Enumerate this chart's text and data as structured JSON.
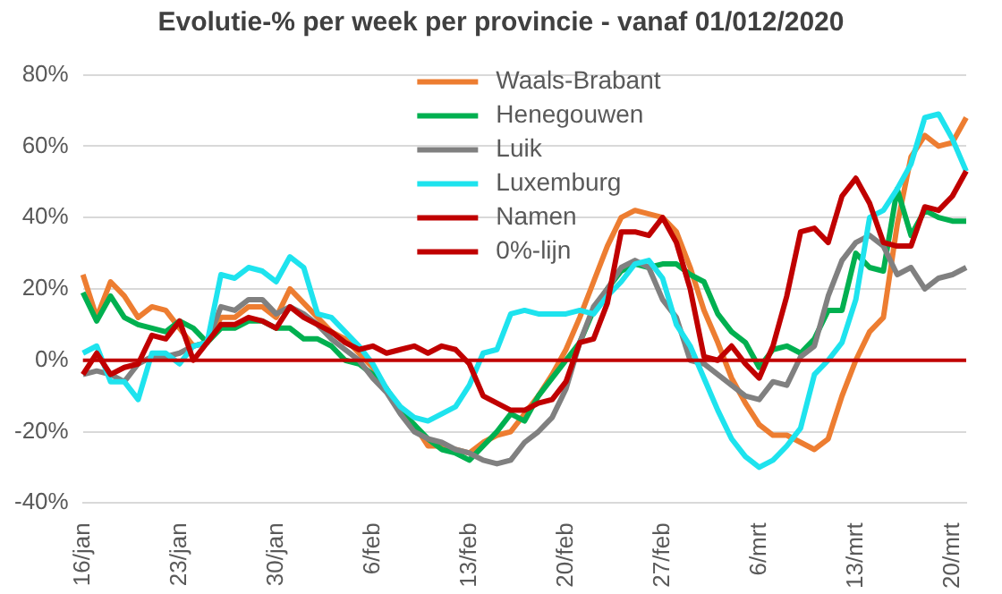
{
  "chart_data": {
    "type": "line",
    "title": "Evolutie-% per week per provincie - vanaf 01/012/2020",
    "categories": [
      "16/jan",
      null,
      null,
      null,
      null,
      null,
      null,
      "23/jan",
      null,
      null,
      null,
      null,
      null,
      null,
      "30/jan",
      null,
      null,
      null,
      null,
      null,
      null,
      "6/feb",
      null,
      null,
      null,
      null,
      null,
      null,
      "13/feb",
      null,
      null,
      null,
      null,
      null,
      null,
      "20/feb",
      null,
      null,
      null,
      null,
      null,
      null,
      "27/feb",
      null,
      null,
      null,
      null,
      null,
      null,
      "6/mrt",
      null,
      null,
      null,
      null,
      null,
      null,
      "13/mrt",
      null,
      null,
      null,
      null,
      null,
      null,
      "20/mrt",
      null
    ],
    "ylim": [
      -40,
      80
    ],
    "yticks": [
      {
        "value": -40,
        "label": "-40%"
      },
      {
        "value": -20,
        "label": "-20%"
      },
      {
        "value": 0,
        "label": "0%"
      },
      {
        "value": 20,
        "label": "20%"
      },
      {
        "value": 40,
        "label": "40%"
      },
      {
        "value": 60,
        "label": "60%"
      },
      {
        "value": 80,
        "label": "80%"
      }
    ],
    "grid": "y",
    "legend": "top",
    "marker": "none",
    "line_style": "solid",
    "series": [
      {
        "name": "Waals-Brabant",
        "color": "#ed7d31",
        "values": [
          24,
          12,
          22,
          18,
          12,
          15,
          14,
          9,
          4,
          5,
          12,
          12,
          15,
          15,
          12,
          20,
          16,
          12,
          8,
          6,
          2,
          -2,
          -8,
          -14,
          -18,
          -24,
          -24,
          -25,
          -26,
          -23,
          -21,
          -20,
          -15,
          -10,
          -4,
          3,
          12,
          22,
          32,
          40,
          42,
          41,
          40,
          36,
          26,
          14,
          5,
          -5,
          -12,
          -18,
          -21,
          -21,
          -23,
          -25,
          -22,
          -10,
          0,
          8,
          12,
          38,
          57,
          63,
          60,
          61,
          68
        ]
      },
      {
        "name": "Henegouwen",
        "color": "#00b050",
        "values": [
          19,
          11,
          18,
          12,
          10,
          9,
          8,
          11,
          9,
          5,
          9,
          9,
          11,
          11,
          9,
          9,
          6,
          6,
          4,
          0,
          -1,
          -4,
          -8,
          -14,
          -18,
          -22,
          -25,
          -26,
          -28,
          -24,
          -20,
          -15,
          -17,
          -10,
          -5,
          0,
          5,
          14,
          20,
          25,
          27,
          26,
          27,
          27,
          24,
          22,
          13,
          8,
          5,
          -2,
          3,
          4,
          2,
          6,
          14,
          14,
          30,
          26,
          25,
          48,
          35,
          42,
          40,
          39,
          39
        ]
      },
      {
        "name": "Luik",
        "color": "#808080",
        "values": [
          -4,
          -3,
          -4,
          -6,
          -1,
          1,
          1,
          2,
          4,
          5,
          15,
          14,
          17,
          17,
          13,
          15,
          13,
          10,
          6,
          3,
          0,
          -5,
          -9,
          -15,
          -20,
          -22,
          -23,
          -25,
          -26,
          -28,
          -29,
          -28,
          -23,
          -20,
          -16,
          -8,
          5,
          15,
          20,
          26,
          28,
          26,
          17,
          12,
          0,
          -1,
          -4,
          -7,
          -10,
          -11,
          -6,
          -7,
          1,
          4,
          18,
          28,
          33,
          35,
          32,
          24,
          26,
          20,
          23,
          24,
          26
        ]
      },
      {
        "name": "Luxemburg",
        "color": "#1ee3ee",
        "values": [
          2,
          4,
          -6,
          -6,
          -11,
          2,
          2,
          -1,
          4,
          5,
          24,
          23,
          26,
          25,
          22,
          29,
          26,
          13,
          12,
          8,
          4,
          -1,
          -8,
          -13,
          -16,
          -17,
          -15,
          -13,
          -7,
          2,
          3,
          13,
          14,
          13,
          13,
          13,
          14,
          13,
          18,
          22,
          27,
          28,
          23,
          10,
          4,
          -5,
          -14,
          -22,
          -27,
          -30,
          -28,
          -24,
          -19,
          -4,
          0,
          5,
          17,
          40,
          42,
          48,
          55,
          68,
          69,
          62,
          53
        ]
      },
      {
        "name": "Namen",
        "color": "#c00000",
        "values": [
          -4,
          2,
          -4,
          -2,
          -1,
          7,
          6,
          11,
          0,
          5,
          10,
          10,
          12,
          11,
          9,
          15,
          12,
          10,
          8,
          5,
          3,
          4,
          2,
          3,
          4,
          2,
          4,
          3,
          -1,
          -10,
          -12,
          -14,
          -14,
          -12,
          -11,
          -6,
          5,
          6,
          16,
          36,
          36,
          35,
          40,
          33,
          20,
          1,
          0,
          4,
          -1,
          -5,
          4,
          18,
          36,
          37,
          33,
          46,
          51,
          44,
          33,
          32,
          32,
          43,
          42,
          46,
          53
        ]
      },
      {
        "name": "0%-lijn",
        "color": "#c00000",
        "values": [
          0,
          0,
          0,
          0,
          0,
          0,
          0,
          0,
          0,
          0,
          0,
          0,
          0,
          0,
          0,
          0,
          0,
          0,
          0,
          0,
          0,
          0,
          0,
          0,
          0,
          0,
          0,
          0,
          0,
          0,
          0,
          0,
          0,
          0,
          0,
          0,
          0,
          0,
          0,
          0,
          0,
          0,
          0,
          0,
          0,
          0,
          0,
          0,
          0,
          0,
          0,
          0,
          0,
          0,
          0,
          0,
          0,
          0,
          0,
          0,
          0,
          0,
          0,
          0,
          0
        ]
      }
    ]
  }
}
